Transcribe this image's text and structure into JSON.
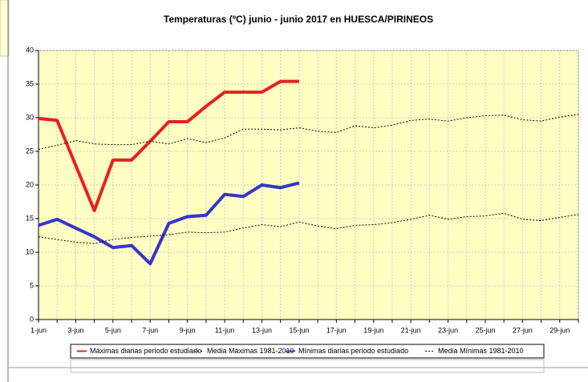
{
  "chart_data": {
    "type": "line",
    "title": "Temperaturas (ºC) junio - junio 2017 en HUESCA/PIRINEOS",
    "categories": [
      "1-jun",
      null,
      "3-jun",
      null,
      "5-jun",
      null,
      "7-jun",
      null,
      "9-jun",
      null,
      "11-jun",
      null,
      "13-jun",
      null,
      "15-jun",
      null,
      "17-jun",
      null,
      "19-jun",
      null,
      "21-jun",
      null,
      "23-jun",
      null,
      "25-jun",
      null,
      "27-jun",
      null,
      "29-jun",
      null
    ],
    "series": [
      {
        "name": "Máximas diarias periodo estudiado",
        "color": "#e82020",
        "width": 4,
        "dashed": false,
        "values": [
          29.9,
          29.6,
          22.9,
          16.2,
          23.7,
          23.7,
          26.5,
          29.4,
          29.4,
          31.7,
          33.8,
          33.8,
          33.8,
          35.4,
          35.4,
          null,
          null,
          null,
          null,
          null,
          null,
          null,
          null,
          null,
          null,
          null,
          null,
          null,
          null,
          null
        ]
      },
      {
        "name": "Media Máximas 1981-2010",
        "color": "#000000",
        "width": 1,
        "dashed": true,
        "values": [
          25.3,
          25.9,
          26.6,
          26.1,
          26.0,
          26.0,
          26.5,
          26.1,
          26.9,
          26.3,
          27.0,
          28.3,
          28.3,
          28.2,
          28.5,
          28.0,
          27.8,
          28.8,
          28.5,
          28.9,
          29.6,
          29.8,
          29.5,
          30.0,
          30.3,
          30.4,
          29.7,
          29.5,
          30.1,
          30.5
        ]
      },
      {
        "name": "Mínimas diarias periodo estudiado",
        "color": "#3535c8",
        "width": 4,
        "dashed": false,
        "values": [
          14.0,
          14.9,
          13.6,
          12.3,
          10.7,
          11.0,
          8.3,
          14.3,
          15.3,
          15.5,
          18.6,
          18.3,
          20.0,
          19.6,
          20.3,
          null,
          null,
          null,
          null,
          null,
          null,
          null,
          null,
          null,
          null,
          null,
          null,
          null,
          null,
          null
        ]
      },
      {
        "name": "Media Mínimas 1981-2010",
        "color": "#000000",
        "width": 1,
        "dashed": true,
        "values": [
          12.3,
          11.9,
          11.5,
          11.3,
          11.9,
          12.2,
          12.4,
          12.6,
          13.0,
          12.9,
          13.0,
          13.6,
          14.1,
          13.8,
          14.5,
          13.9,
          13.5,
          14.0,
          14.1,
          14.4,
          14.9,
          15.5,
          14.9,
          15.3,
          15.4,
          15.8,
          14.9,
          14.7,
          15.2,
          15.6
        ]
      }
    ],
    "ylim": [
      0,
      40
    ],
    "yticks": [
      0,
      5,
      10,
      15,
      20,
      25,
      30,
      35,
      40
    ],
    "grid": true,
    "plot_background": "#ffffc4"
  }
}
